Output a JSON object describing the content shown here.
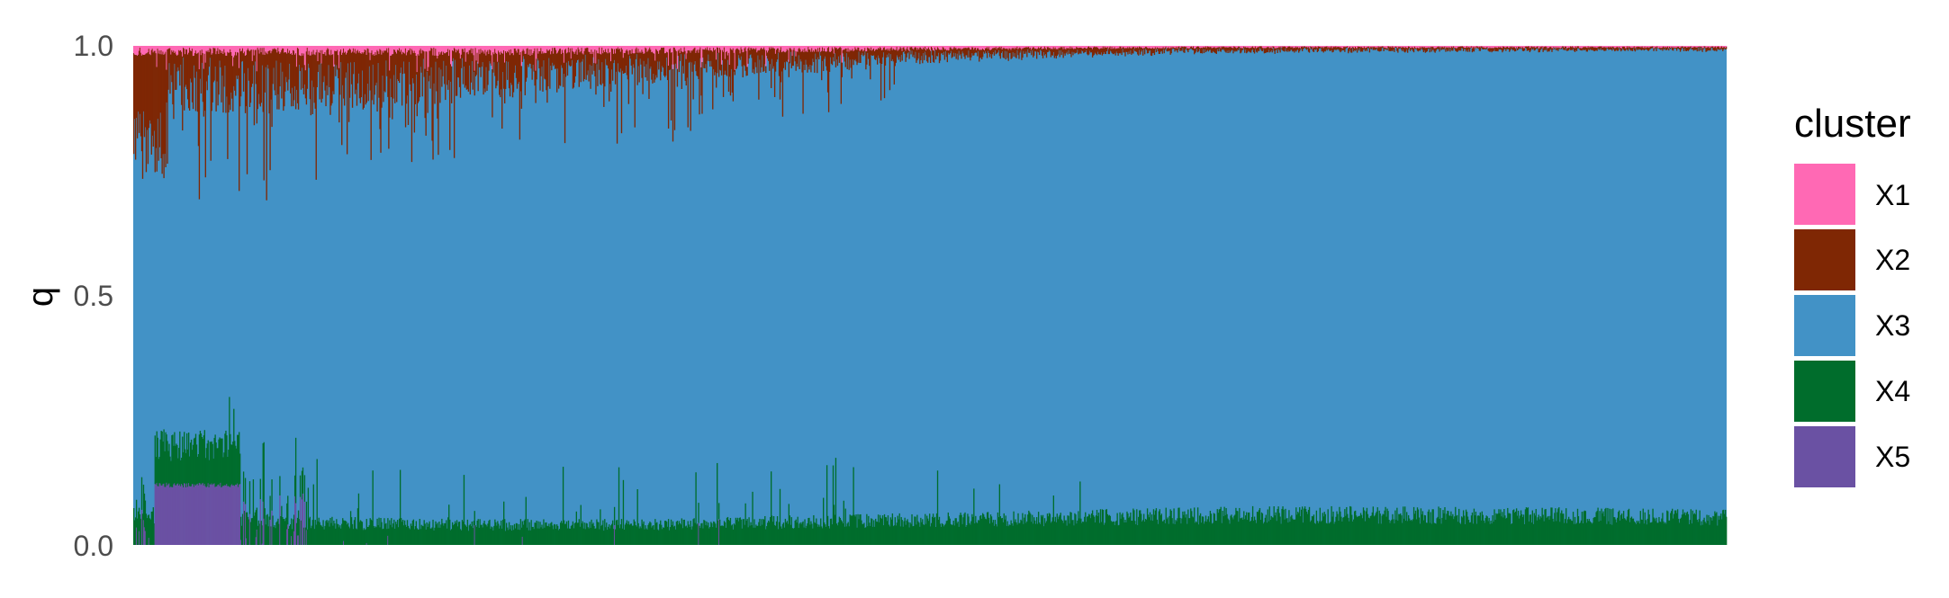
{
  "chart_data": {
    "type": "bar",
    "stacked": true,
    "ylabel": "q",
    "ylim": [
      0,
      1
    ],
    "yticks": [
      "0.0",
      "0.5",
      "1.0"
    ],
    "grid": false,
    "legend_position": "right",
    "legend_title": "cluster",
    "series": [
      {
        "name": "X1",
        "color": "#FF69B4"
      },
      {
        "name": "X2",
        "color": "#7F2704"
      },
      {
        "name": "X3",
        "color": "#4292C6"
      },
      {
        "name": "X4",
        "color": "#006D2C"
      },
      {
        "name": "X5",
        "color": "#6A51A3"
      }
    ],
    "sample_count": 1800,
    "profile": {
      "description_points_x_fraction": [
        0.0,
        0.05,
        0.1,
        0.2,
        0.3,
        0.4,
        0.5,
        0.6,
        0.7,
        0.8,
        0.9,
        1.0
      ],
      "X1_mean": [
        0.012,
        0.012,
        0.012,
        0.012,
        0.01,
        0.008,
        0.006,
        0.004,
        0.003,
        0.003,
        0.003,
        0.003
      ],
      "X2_mean": [
        0.09,
        0.09,
        0.09,
        0.07,
        0.05,
        0.035,
        0.02,
        0.012,
        0.008,
        0.007,
        0.006,
        0.006
      ],
      "X4_mean": [
        0.06,
        0.06,
        0.045,
        0.04,
        0.04,
        0.045,
        0.05,
        0.055,
        0.06,
        0.06,
        0.058,
        0.055
      ],
      "X5_block": {
        "start": 0.013,
        "end": 0.067,
        "value": 0.12
      }
    }
  }
}
